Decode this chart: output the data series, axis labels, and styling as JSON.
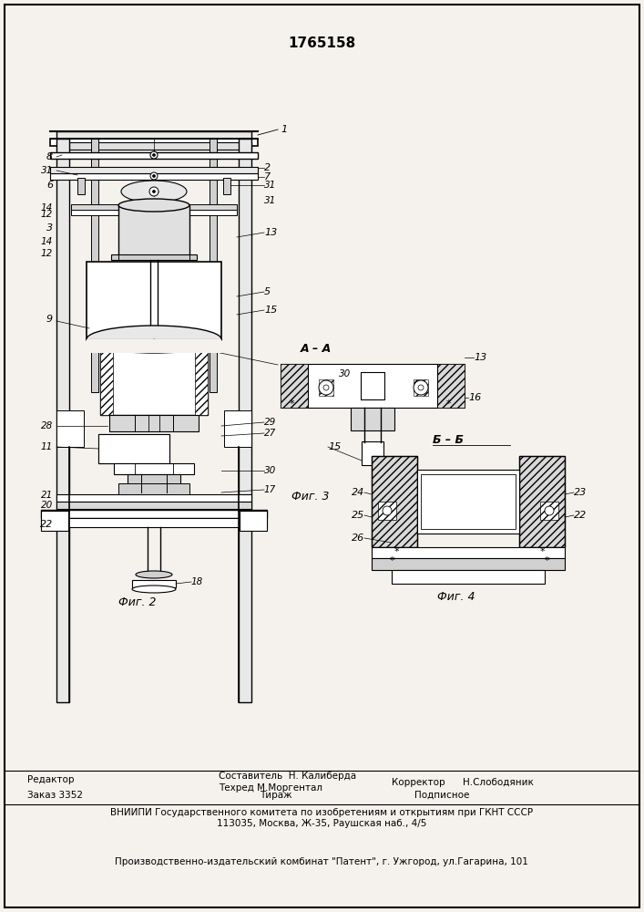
{
  "title": "1765158",
  "bg_color": "#f5f2ed",
  "fig_width": 7.07,
  "fig_height": 10.0,
  "footer": {
    "editor_label": "Редактор",
    "sostavitel": "Составитель  Н. Калиберда",
    "tehred": "Техред М.Моргентал",
    "korrektor_label": "Корректор",
    "korrektor_name": "Н.Слободяник",
    "zakaz": "Заказ 3352",
    "tirazh": "Тираж",
    "podpisnoe": "Подписное",
    "vniipii1": "ВНИИПИ Государственного комитета по изобретениям и открытиям при ГКНТ СССР",
    "vniipii2": "113035, Москва, Ж-35, Раушская наб., 4/5",
    "proizv": "Производственно-издательский комбинат \"Патент\", г. Ужгород, ул.Гагарина, 101"
  },
  "fig2_caption": "Фиг. 2",
  "fig3_caption": "Фиг. 3",
  "fig4_caption": "Фиг. 4",
  "aa_label": "А – А",
  "bb_label": "Б – Б"
}
